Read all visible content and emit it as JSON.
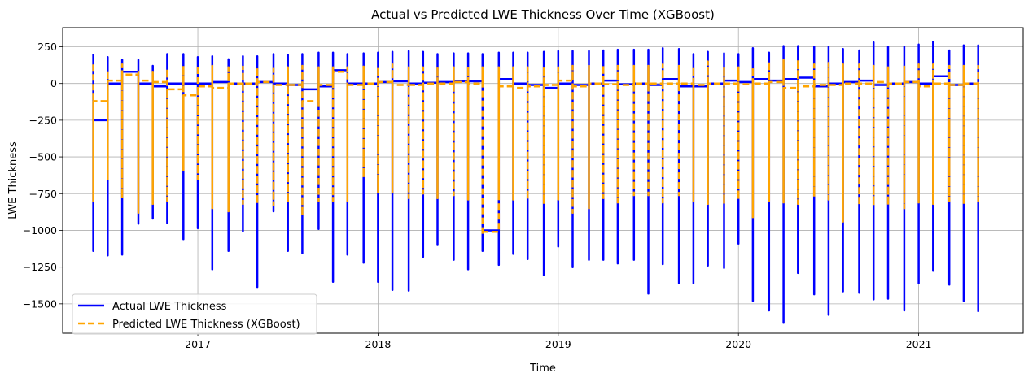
{
  "chart_data": {
    "type": "line",
    "title": "Actual vs Predicted LWE Thickness Over Time (XGBoost)",
    "xlabel": "Time",
    "ylabel": "LWE Thickness",
    "xlim": [
      2016.25,
      2021.58
    ],
    "ylim": [
      -1700,
      380
    ],
    "x_ticks": [
      2017,
      2018,
      2019,
      2020,
      2021
    ],
    "y_ticks": [
      250,
      0,
      -250,
      -500,
      -750,
      -1000,
      -1250,
      -1500
    ],
    "y_tick_labels": [
      "250",
      "0",
      "−250",
      "−500",
      "−750",
      "−1000",
      "−1250",
      "−1500"
    ],
    "grid": true,
    "legend_position": "lower-left",
    "series": [
      {
        "name": "Actual LWE Thickness",
        "color": "#0000ff",
        "style": "solid",
        "x": [
          2016.42,
          2016.5,
          2016.58,
          2016.67,
          2016.75,
          2016.83,
          2016.92,
          2017.0,
          2017.08,
          2017.17,
          2017.25,
          2017.33,
          2017.42,
          2017.5,
          2017.58,
          2017.67,
          2017.75,
          2017.83,
          2017.92,
          2018.0,
          2018.08,
          2018.17,
          2018.25,
          2018.33,
          2018.42,
          2018.5,
          2018.58,
          2018.67,
          2018.75,
          2018.83,
          2018.92,
          2019.0,
          2019.08,
          2019.17,
          2019.25,
          2019.33,
          2019.42,
          2019.5,
          2019.58,
          2019.67,
          2019.75,
          2019.83,
          2019.92,
          2020.0,
          2020.08,
          2020.17,
          2020.25,
          2020.33,
          2020.42,
          2020.5,
          2020.58,
          2020.67,
          2020.75,
          2020.83,
          2020.92,
          2021.0,
          2021.08,
          2021.17,
          2021.25,
          2021.33
        ],
        "high": [
          200,
          180,
          160,
          160,
          120,
          200,
          200,
          180,
          185,
          165,
          185,
          185,
          200,
          195,
          200,
          210,
          210,
          200,
          205,
          210,
          215,
          220,
          215,
          200,
          205,
          205,
          200,
          210,
          210,
          210,
          215,
          220,
          220,
          220,
          225,
          230,
          230,
          230,
          240,
          235,
          200,
          215,
          205,
          200,
          240,
          210,
          255,
          255,
          250,
          250,
          235,
          225,
          280,
          250,
          250,
          265,
          285,
          225,
          260,
          260
        ],
        "low": [
          -1140,
          -1170,
          -1165,
          -955,
          -920,
          -950,
          -1060,
          -985,
          -1265,
          -1140,
          -1005,
          -1385,
          -870,
          -1140,
          -1155,
          -990,
          -1350,
          -1165,
          -1220,
          -1350,
          -1405,
          -1410,
          -1180,
          -1100,
          -1200,
          -1265,
          -1140,
          -1235,
          -1160,
          -1195,
          -1305,
          -1110,
          -1250,
          -1200,
          -1200,
          -1225,
          -1200,
          -1430,
          -1230,
          -1360,
          -1360,
          -1240,
          -1255,
          -1090,
          -1480,
          -1545,
          -1630,
          -1290,
          -1435,
          -1575,
          -1415,
          -1425,
          -1470,
          -1465,
          -1545,
          -1360,
          -1275,
          -1370,
          -1480,
          -1550
        ],
        "end": [
          -250,
          0,
          80,
          0,
          -20,
          0,
          0,
          0,
          10,
          0,
          0,
          10,
          0,
          -10,
          -40,
          -20,
          90,
          0,
          0,
          10,
          15,
          0,
          5,
          10,
          15,
          15,
          -1000,
          30,
          0,
          -10,
          -30,
          0,
          -10,
          0,
          20,
          -5,
          0,
          -10,
          30,
          -20,
          -20,
          0,
          20,
          10,
          30,
          20,
          30,
          40,
          -20,
          0,
          10,
          20,
          -10,
          0,
          10,
          0,
          50,
          -10,
          0,
          10
        ]
      },
      {
        "name": "Predicted LWE Thickness (XGBoost)",
        "color": "#ffa500",
        "style": "dashed",
        "x": [
          2016.42,
          2016.5,
          2016.58,
          2016.67,
          2016.75,
          2016.83,
          2016.92,
          2017.0,
          2017.08,
          2017.17,
          2017.25,
          2017.33,
          2017.42,
          2017.5,
          2017.58,
          2017.67,
          2017.75,
          2017.83,
          2017.92,
          2018.0,
          2018.08,
          2018.17,
          2018.25,
          2018.33,
          2018.42,
          2018.5,
          2018.58,
          2018.67,
          2018.75,
          2018.83,
          2018.92,
          2019.0,
          2019.08,
          2019.17,
          2019.25,
          2019.33,
          2019.42,
          2019.5,
          2019.58,
          2019.67,
          2019.75,
          2019.83,
          2019.92,
          2020.0,
          2020.08,
          2020.17,
          2020.25,
          2020.33,
          2020.42,
          2020.5,
          2020.58,
          2020.67,
          2020.75,
          2020.83,
          2020.92,
          2021.0,
          2021.08,
          2021.17,
          2021.25,
          2021.33
        ],
        "high": [
          130,
          90,
          130,
          80,
          80,
          100,
          120,
          120,
          120,
          110,
          115,
          110,
          100,
          110,
          120,
          110,
          110,
          110,
          115,
          110,
          130,
          110,
          110,
          110,
          110,
          115,
          110,
          110,
          110,
          110,
          110,
          110,
          120,
          120,
          125,
          120,
          120,
          120,
          130,
          120,
          110,
          150,
          110,
          110,
          110,
          150,
          160,
          160,
          130,
          140,
          130,
          130,
          120,
          110,
          115,
          130,
          130,
          120,
          120,
          120
        ],
        "low": [
          -800,
          -650,
          -780,
          -880,
          -820,
          -800,
          -590,
          -650,
          -850,
          -870,
          -820,
          -820,
          -830,
          -810,
          -900,
          -800,
          -800,
          -800,
          -640,
          -750,
          -740,
          -780,
          -750,
          -780,
          -760,
          -790,
          -1030,
          -770,
          -790,
          -790,
          -820,
          -790,
          -880,
          -850,
          -780,
          -810,
          -760,
          -760,
          -810,
          -760,
          -800,
          -820,
          -820,
          -790,
          -910,
          -800,
          -810,
          -820,
          -770,
          -790,
          -940,
          -830,
          -830,
          -830,
          -850,
          -810,
          -820,
          -800,
          -820,
          -800
        ],
        "end": [
          -120,
          20,
          60,
          20,
          10,
          -40,
          -80,
          -20,
          -30,
          0,
          0,
          10,
          -10,
          -10,
          -120,
          -10,
          80,
          -10,
          0,
          10,
          -10,
          -10,
          0,
          0,
          10,
          0,
          -1010,
          -20,
          -30,
          -20,
          -10,
          20,
          -20,
          0,
          -5,
          -10,
          0,
          0,
          0,
          0,
          -10,
          0,
          0,
          -5,
          0,
          10,
          -30,
          -20,
          -10,
          -10,
          0,
          0,
          10,
          0,
          10,
          -20,
          0,
          -10,
          0,
          10
        ]
      }
    ]
  }
}
